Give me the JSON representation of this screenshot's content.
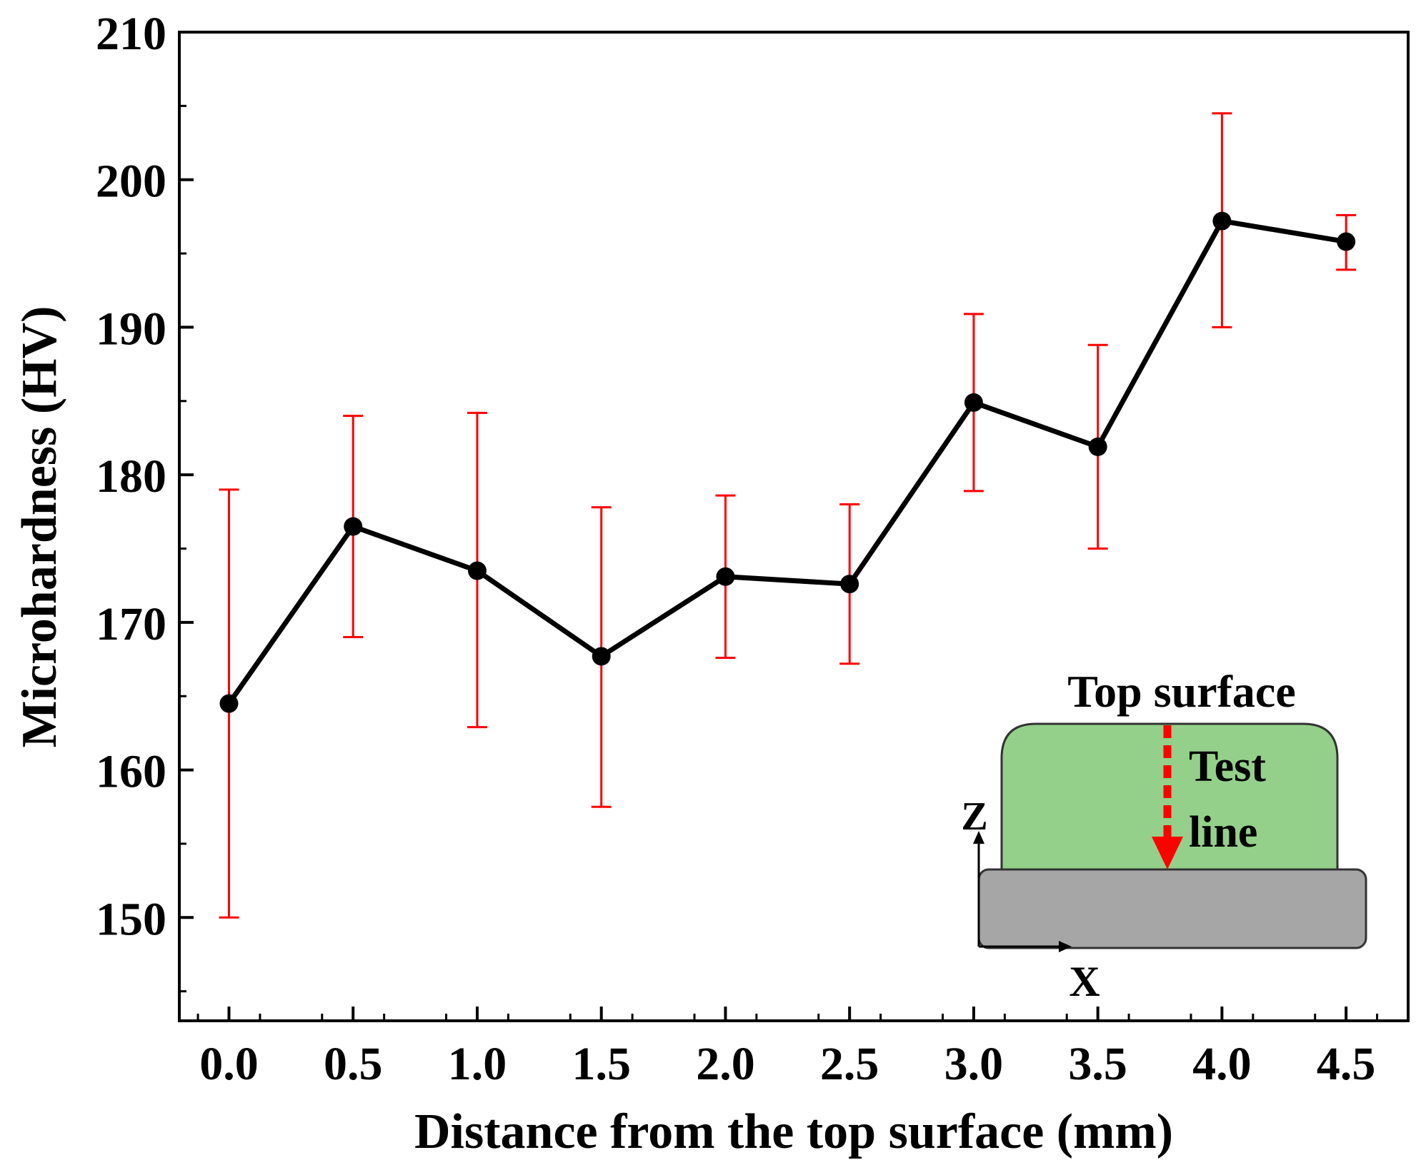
{
  "chart_data": {
    "type": "line",
    "title": "",
    "xlabel": "Distance from the top surface (mm)",
    "ylabel": "Microhardness (HV)",
    "xlim": [
      -0.2,
      4.75
    ],
    "ylim": [
      143,
      210
    ],
    "x_ticks": [
      "0.0",
      "0.5",
      "1.0",
      "1.5",
      "2.0",
      "2.5",
      "3.0",
      "3.5",
      "4.0",
      "4.5"
    ],
    "y_ticks": [
      "150",
      "160",
      "170",
      "180",
      "190",
      "200",
      "210"
    ],
    "x_tick_values": [
      0,
      0.5,
      1,
      1.5,
      2,
      2.5,
      3,
      3.5,
      4,
      4.5
    ],
    "y_tick_values": [
      150,
      160,
      170,
      180,
      190,
      200,
      210
    ],
    "grid": false,
    "series": [
      {
        "name": "Microhardness",
        "color": "#000000",
        "error_color": "#ff0000",
        "x": [
          0,
          0.5,
          1,
          1.5,
          2,
          2.5,
          3,
          3.5,
          4,
          4.5
        ],
        "values": [
          164.5,
          176.5,
          173.5,
          167.7,
          173.1,
          172.6,
          184.9,
          181.9,
          197.2,
          195.8
        ],
        "error_low": [
          150.0,
          169.0,
          162.9,
          157.5,
          167.6,
          167.2,
          178.9,
          175.0,
          190.0,
          193.9
        ],
        "error_high": [
          179.0,
          184.0,
          184.2,
          177.8,
          178.6,
          178.0,
          190.9,
          188.8,
          204.5,
          197.6
        ]
      }
    ],
    "inset": {
      "top_label": "Top surface",
      "line_label_1": "Test",
      "line_label_2": "line",
      "axis_z": "Z",
      "axis_x": "X",
      "deposit_color": "#94d08a",
      "substrate_color": "#a6a6a6",
      "test_line_color": "#ff0000"
    }
  }
}
